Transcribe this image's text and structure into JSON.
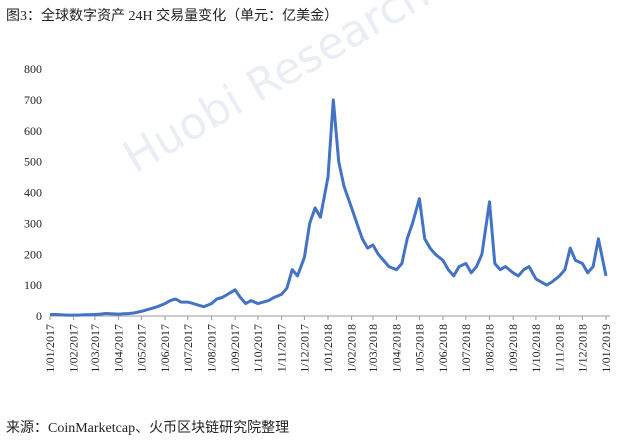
{
  "chart_data": {
    "type": "line",
    "title": "图3：全球数字资产 24H 交易量变化（单元：亿美金）",
    "source": "来源：CoinMarketcap、火币区块链研究院整理",
    "watermark": "Huobi Research",
    "x": [
      "1/01/2017",
      "8/01/2017",
      "15/01/2017",
      "22/01/2017",
      "1/02/2017",
      "8/02/2017",
      "15/02/2017",
      "22/02/2017",
      "1/03/2017",
      "8/03/2017",
      "15/03/2017",
      "22/03/2017",
      "1/04/2017",
      "8/04/2017",
      "15/04/2017",
      "22/04/2017",
      "1/05/2017",
      "8/05/2017",
      "15/05/2017",
      "22/05/2017",
      "1/06/2017",
      "8/06/2017",
      "15/06/2017",
      "22/06/2017",
      "1/07/2017",
      "8/07/2017",
      "15/07/2017",
      "22/07/2017",
      "1/08/2017",
      "8/08/2017",
      "15/08/2017",
      "22/08/2017",
      "1/09/2017",
      "8/09/2017",
      "15/09/2017",
      "22/09/2017",
      "1/10/2017",
      "8/10/2017",
      "15/10/2017",
      "22/10/2017",
      "1/11/2017",
      "8/11/2017",
      "15/11/2017",
      "22/11/2017",
      "1/12/2017",
      "8/12/2017",
      "15/12/2017",
      "22/12/2017",
      "1/01/2018",
      "8/01/2018",
      "15/01/2018",
      "22/01/2018",
      "1/02/2018",
      "8/02/2018",
      "15/02/2018",
      "22/02/2018",
      "1/03/2018",
      "8/03/2018",
      "15/03/2018",
      "22/03/2018",
      "1/04/2018",
      "8/04/2018",
      "15/04/2018",
      "22/04/2018",
      "1/05/2018",
      "8/05/2018",
      "15/05/2018",
      "22/05/2018",
      "1/06/2018",
      "8/06/2018",
      "15/06/2018",
      "22/06/2018",
      "1/07/2018",
      "8/07/2018",
      "15/07/2018",
      "22/07/2018",
      "1/08/2018",
      "8/08/2018",
      "15/08/2018",
      "22/08/2018",
      "1/09/2018",
      "8/09/2018",
      "15/09/2018",
      "22/09/2018",
      "1/10/2018",
      "8/10/2018",
      "15/10/2018",
      "22/10/2018",
      "1/11/2018",
      "8/11/2018",
      "15/11/2018",
      "22/11/2018",
      "1/12/2018",
      "8/12/2018",
      "15/12/2018",
      "22/12/2018",
      "1/01/2019"
    ],
    "series": [
      {
        "name": "24H 交易量",
        "color": "#4472c4",
        "values": [
          5,
          5,
          4,
          3,
          3,
          3,
          4,
          4,
          5,
          6,
          8,
          7,
          6,
          7,
          8,
          10,
          15,
          20,
          25,
          30,
          40,
          50,
          55,
          45,
          45,
          40,
          35,
          30,
          40,
          55,
          60,
          70,
          85,
          60,
          40,
          50,
          40,
          45,
          50,
          60,
          70,
          90,
          150,
          130,
          190,
          300,
          350,
          320,
          450,
          700,
          500,
          420,
          350,
          300,
          250,
          220,
          230,
          200,
          180,
          160,
          150,
          170,
          250,
          300,
          380,
          250,
          220,
          200,
          180,
          150,
          130,
          160,
          170,
          140,
          160,
          200,
          370,
          170,
          150,
          160,
          140,
          130,
          150,
          160,
          120,
          110,
          100,
          110,
          130,
          150,
          220,
          180,
          170,
          140,
          160,
          250,
          130
        ]
      }
    ],
    "xlim": [
      "1/01/2017",
      "1/01/2019"
    ],
    "xticks": [
      "1/01/2017",
      "1/02/2017",
      "1/03/2017",
      "1/04/2017",
      "1/05/2017",
      "1/06/2017",
      "1/07/2017",
      "1/08/2017",
      "1/09/2017",
      "1/10/2017",
      "1/11/2017",
      "1/12/2017",
      "1/01/2018",
      "1/02/2018",
      "1/03/2018",
      "1/04/2018",
      "1/05/2018",
      "1/06/2018",
      "1/07/2018",
      "1/08/2018",
      "1/09/2018",
      "1/10/2018",
      "1/11/2018",
      "1/12/2018",
      "1/01/2019"
    ],
    "ylim": [
      0,
      800
    ],
    "yticks": [
      0,
      100,
      200,
      300,
      400,
      500,
      600,
      700,
      800
    ],
    "grid": false
  }
}
